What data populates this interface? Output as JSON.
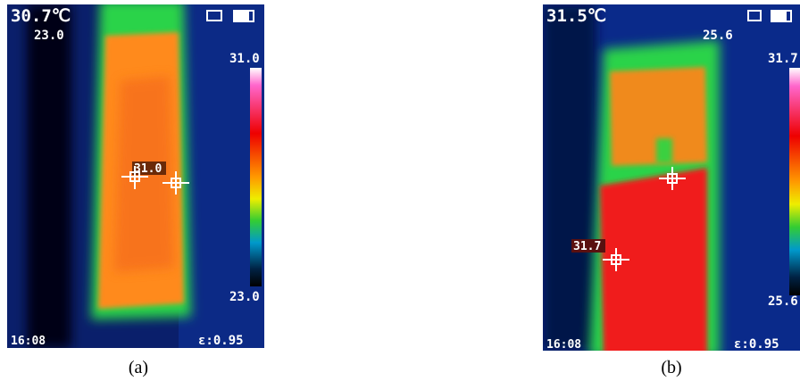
{
  "panels": [
    {
      "caption": "(a)",
      "center_temp": "30.7℃",
      "min_reading": "23.0",
      "scale_max": "31.0",
      "scale_min": "23.0",
      "spot_label": "31.0",
      "time": "16:08",
      "emissivity": "ε:0.95"
    },
    {
      "caption": "(b)",
      "center_temp": "31.5℃",
      "min_reading": "25.6",
      "scale_max": "31.7",
      "scale_min": "25.6",
      "spot_label": "31.7",
      "time": "16:08",
      "emissivity": "ε:0.95"
    }
  ]
}
